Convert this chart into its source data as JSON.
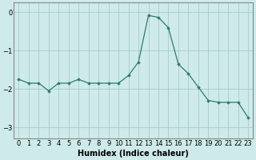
{
  "x": [
    0,
    1,
    2,
    3,
    4,
    5,
    6,
    7,
    8,
    9,
    10,
    11,
    12,
    13,
    14,
    15,
    16,
    17,
    18,
    19,
    20,
    21,
    22,
    23
  ],
  "y": [
    -1.75,
    -1.85,
    -1.85,
    -2.05,
    -1.85,
    -1.85,
    -1.75,
    -1.85,
    -1.85,
    -1.85,
    -1.85,
    -1.65,
    -1.3,
    -0.08,
    -0.13,
    -0.4,
    -1.35,
    -1.6,
    -1.95,
    -2.3,
    -2.35,
    -2.35,
    -2.35,
    -2.75
  ],
  "line_color": "#2e7d6e",
  "marker": "D",
  "marker_size": 1.8,
  "bg_color": "#ceeaea",
  "grid_color": "#aacccc",
  "xlabel": "Humidex (Indice chaleur)",
  "xlabel_fontsize": 7,
  "yticks": [
    0,
    -1,
    -2,
    -3
  ],
  "ylim": [
    -3.3,
    0.25
  ],
  "xlim": [
    -0.5,
    23.5
  ],
  "tick_fontsize": 6,
  "linewidth": 0.9
}
